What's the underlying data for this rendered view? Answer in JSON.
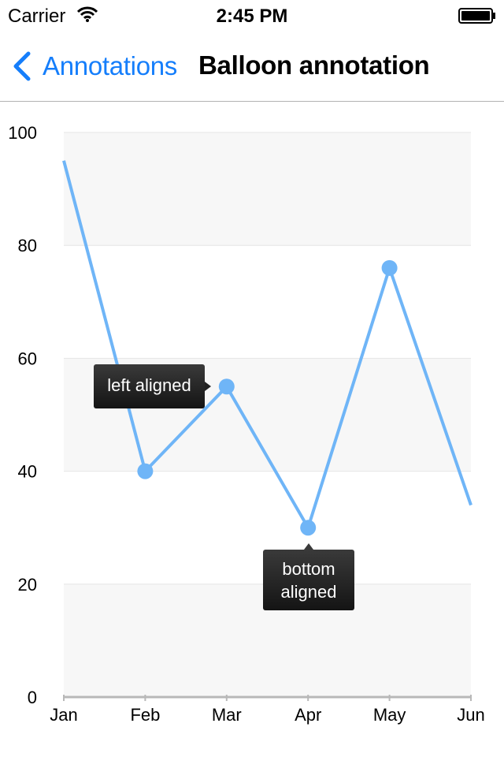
{
  "status_bar": {
    "carrier": "Carrier",
    "time": "2:45 PM",
    "wifi_icon": "wifi-icon",
    "battery_icon": "battery-icon"
  },
  "nav": {
    "back_label": "Annotations",
    "back_icon": "chevron-left-icon",
    "title": "Balloon annotation",
    "accent_color": "#157efb"
  },
  "chart_data": {
    "type": "line",
    "categories": [
      "Jan",
      "Feb",
      "Mar",
      "Apr",
      "May",
      "Jun"
    ],
    "series": [
      {
        "values": [
          95,
          40,
          55,
          30,
          76,
          34
        ],
        "color": "#6fb5f7"
      }
    ],
    "markers": [
      1,
      2,
      3,
      4
    ],
    "ylim": [
      0,
      100
    ],
    "yticks": [
      "0",
      "20",
      "40",
      "60",
      "80",
      "100"
    ],
    "grid": true,
    "band_color": "#f7f7f7",
    "annotations": [
      {
        "text": "left aligned",
        "category": "Mar",
        "value": 55,
        "align": "left"
      },
      {
        "text": "bottom aligned",
        "category": "Apr",
        "value": 30,
        "align": "bottom"
      }
    ]
  }
}
